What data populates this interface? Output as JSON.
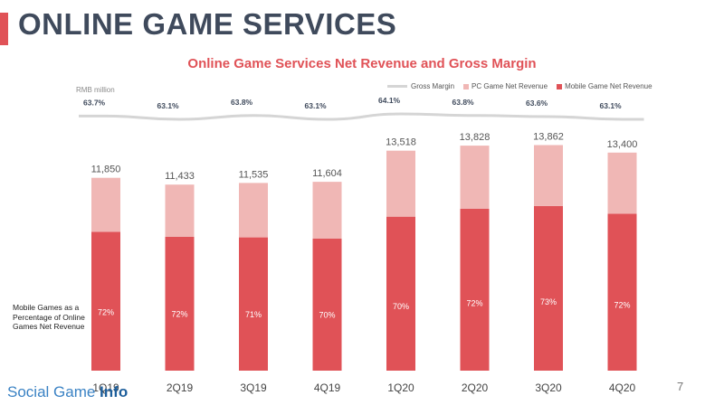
{
  "header": {
    "title": "ONLINE GAME SERVICES",
    "accent_color": "#e05257"
  },
  "chart_data": {
    "type": "bar",
    "stacked": true,
    "title": "Online Game Services Net Revenue and Gross Margin",
    "units_label": "RMB million",
    "categories": [
      "1Q19",
      "2Q19",
      "3Q19",
      "4Q19",
      "1Q20",
      "2Q20",
      "3Q20",
      "4Q20"
    ],
    "totals": [
      11850,
      11433,
      11535,
      11604,
      13518,
      13828,
      13862,
      13400
    ],
    "total_labels": [
      "11,850",
      "11,433",
      "11,535",
      "11,604",
      "13,518",
      "13,828",
      "13,862",
      "13,400"
    ],
    "series": [
      {
        "name": "Mobile Game Net Revenue",
        "color": "#e05257",
        "values": [
          8532,
          8232,
          8190,
          8123,
          9463,
          9956,
          10119,
          9648
        ]
      },
      {
        "name": "PC Game Net Revenue",
        "color": "#f0b7b5",
        "values": [
          3318,
          3201,
          3345,
          3481,
          4055,
          3872,
          3743,
          3752
        ]
      }
    ],
    "mobile_share_labels": [
      "72%",
      "72%",
      "71%",
      "70%",
      "70%",
      "72%",
      "73%",
      "72%"
    ],
    "gross_margin": {
      "name": "Gross Margin",
      "color": "#d5d5d5",
      "values": [
        63.7,
        63.1,
        63.8,
        63.1,
        64.1,
        63.8,
        63.6,
        63.1
      ],
      "labels": [
        "63.7%",
        "63.1%",
        "63.8%",
        "63.1%",
        "64.1%",
        "63.8%",
        "63.6%",
        "63.1%"
      ]
    },
    "legend": [
      "Gross Margin",
      "PC Game Net Revenue",
      "Mobile Game Net Revenue"
    ],
    "legend_position": "top-right",
    "ylim": [
      0,
      14000
    ],
    "grid": false
  },
  "side_note": "Mobile Games as a Percentage of Online Games Net Revenue",
  "page_number": "7",
  "watermark": {
    "part1": "Social Game ",
    "part2": "Info"
  }
}
